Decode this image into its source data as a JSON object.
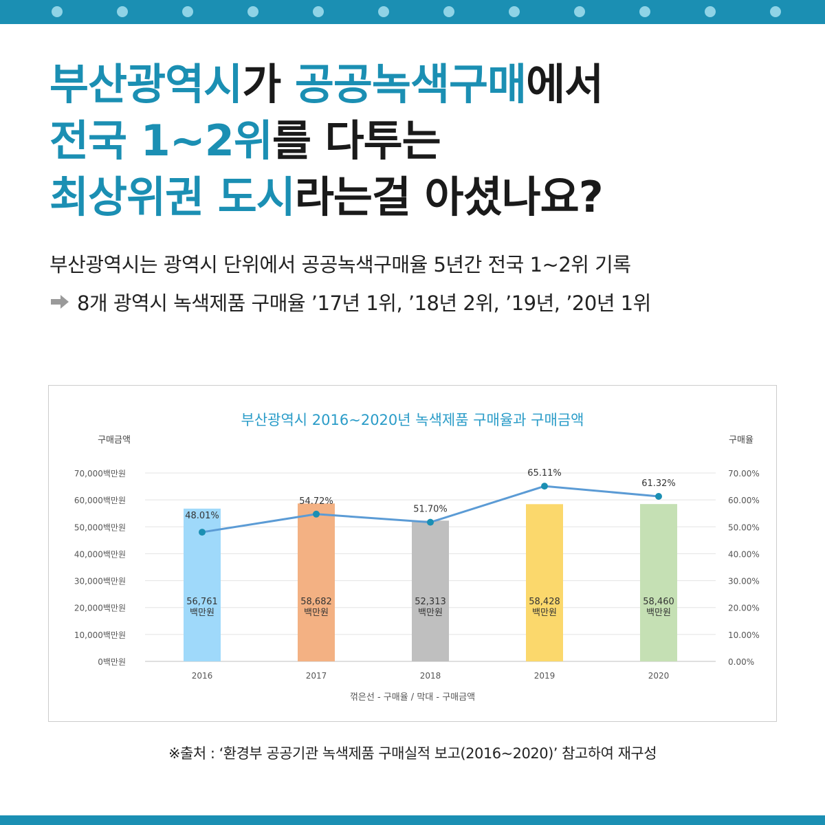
{
  "headline": {
    "line1": [
      {
        "text": "부산광역시",
        "hl": true
      },
      {
        "text": "가 ",
        "hl": false
      },
      {
        "text": "공공녹색구매",
        "hl": true
      },
      {
        "text": "에서",
        "hl": false
      }
    ],
    "line2": [
      {
        "text": "전국 1~2위",
        "hl": true
      },
      {
        "text": "를 다투는",
        "hl": false
      }
    ],
    "line3": [
      {
        "text": "최상위권 도시",
        "hl": true
      },
      {
        "text": "라는걸 아셨나요?",
        "hl": false
      }
    ]
  },
  "subtitle": {
    "line1": "부산광역시는 광역시 단위에서 공공녹색구매율 5년간  전국 1~2위 기록",
    "line2": "8개 광역시 녹색제품 구매율 ’17년 1위,  ’18년 2위, ’19년, ’20년 1위",
    "arrow_icon": "right-arrow-icon"
  },
  "chart_data": {
    "type": "bar+line",
    "title": "부산광역시 2016~2020년 녹색제품 구매율과 구매금액",
    "left_axis_title": "구매금액",
    "right_axis_title": "구매율",
    "categories": [
      "2016",
      "2017",
      "2018",
      "2019",
      "2020"
    ],
    "bar_series": {
      "name": "구매금액",
      "values": [
        56761,
        58682,
        52313,
        58428,
        58460
      ],
      "labels": [
        "56,761",
        "58,682",
        "52,313",
        "58,428",
        "58,460"
      ],
      "unit_label": "백만원",
      "colors": [
        "#9fd9fa",
        "#f3b183",
        "#bfbfbf",
        "#fbd86c",
        "#c5e0b4"
      ]
    },
    "line_series": {
      "name": "구매율",
      "values": [
        48.01,
        54.72,
        51.7,
        65.11,
        61.32
      ],
      "labels": [
        "48.01%",
        "54.72%",
        "51.70%",
        "65.11%",
        "61.32%"
      ],
      "color": "#5b9bd5",
      "marker_color": "#1b8fb3"
    },
    "left_ylim": [
      0,
      70000
    ],
    "left_ticks": [
      "0백만원",
      "10,000백만원",
      "20,000백만원",
      "30,000백만원",
      "40,000백만원",
      "50,000백만원",
      "60,000백만원",
      "70,000백만원"
    ],
    "right_ylim": [
      0,
      70
    ],
    "right_ticks": [
      "0.00%",
      "10.00%",
      "20.00%",
      "30.00%",
      "40.00%",
      "50.00%",
      "60.00%",
      "70.00%"
    ],
    "grid": true,
    "caption": "꺾은선 - 구매율 / 막대 - 구매금액"
  },
  "source": "※출처 : ‘환경부 공공기관 녹색제품 구매실적 보고(2016~2020)’ 참고하여 재구성",
  "colors": {
    "accent": "#1b8fb3",
    "top_dots": "#8fd3e6",
    "title_blue": "#2a9cc8"
  }
}
